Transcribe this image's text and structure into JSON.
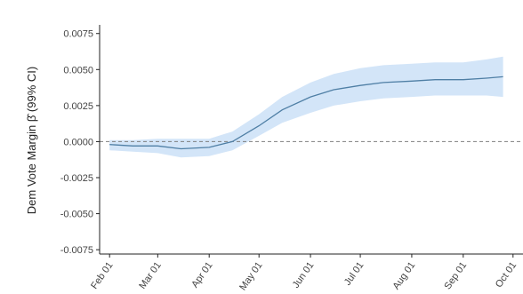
{
  "chart_data": {
    "type": "line",
    "ylabel": "Dem Vote Margin  β̂  (99% CI)",
    "y_ticks": [
      0.0075,
      0.005,
      0.0025,
      0,
      -0.0025,
      -0.005,
      -0.0075
    ],
    "y_tick_labels": [
      "0.0075",
      "0.0050",
      "0.0025",
      "0.0000",
      "-0.0025",
      "-0.0050",
      "-0.0075"
    ],
    "ylim": [
      -0.0078,
      0.0081
    ],
    "x_tick_labels": [
      "Feb 01",
      "Mar 01",
      "Apr 01",
      "May 01",
      "Jun 01",
      "Jul 01",
      "Aug 01",
      "Sep 01",
      "Oct 01"
    ],
    "reference_line": 0,
    "colors": {
      "line": "#4f7fa5",
      "band": "#d3e5f8",
      "zero": "#7f7f7f",
      "axis": "#222222"
    },
    "series": [
      {
        "x": [
          "Feb 01",
          "Feb 15",
          "Mar 01",
          "Mar 15",
          "Apr 01",
          "Apr 15",
          "May 01",
          "May 15",
          "Jun 01",
          "Jun 15",
          "Jul 01",
          "Jul 15",
          "Aug 01",
          "Aug 15",
          "Sep 01",
          "Sep 15",
          "Sep 25"
        ],
        "y": [
          -0.0002,
          -0.0003,
          -0.0003,
          -0.0005,
          -0.0004,
          0.0,
          0.0011,
          0.0022,
          0.0031,
          0.0036,
          0.0039,
          0.0041,
          0.0042,
          0.0043,
          0.0043,
          0.0044,
          0.0045
        ],
        "lower": [
          -0.0006,
          -0.0007,
          -0.0008,
          -0.0011,
          -0.001,
          -0.0006,
          0.0004,
          0.0013,
          0.002,
          0.0025,
          0.0028,
          0.003,
          0.0031,
          0.0032,
          0.0032,
          0.0032,
          0.0031
        ],
        "upper": [
          0.0001,
          0.0001,
          0.0002,
          0.0002,
          0.0002,
          0.0007,
          0.0019,
          0.0031,
          0.0041,
          0.0047,
          0.0051,
          0.0053,
          0.0054,
          0.0055,
          0.0055,
          0.0057,
          0.0059
        ]
      }
    ]
  }
}
